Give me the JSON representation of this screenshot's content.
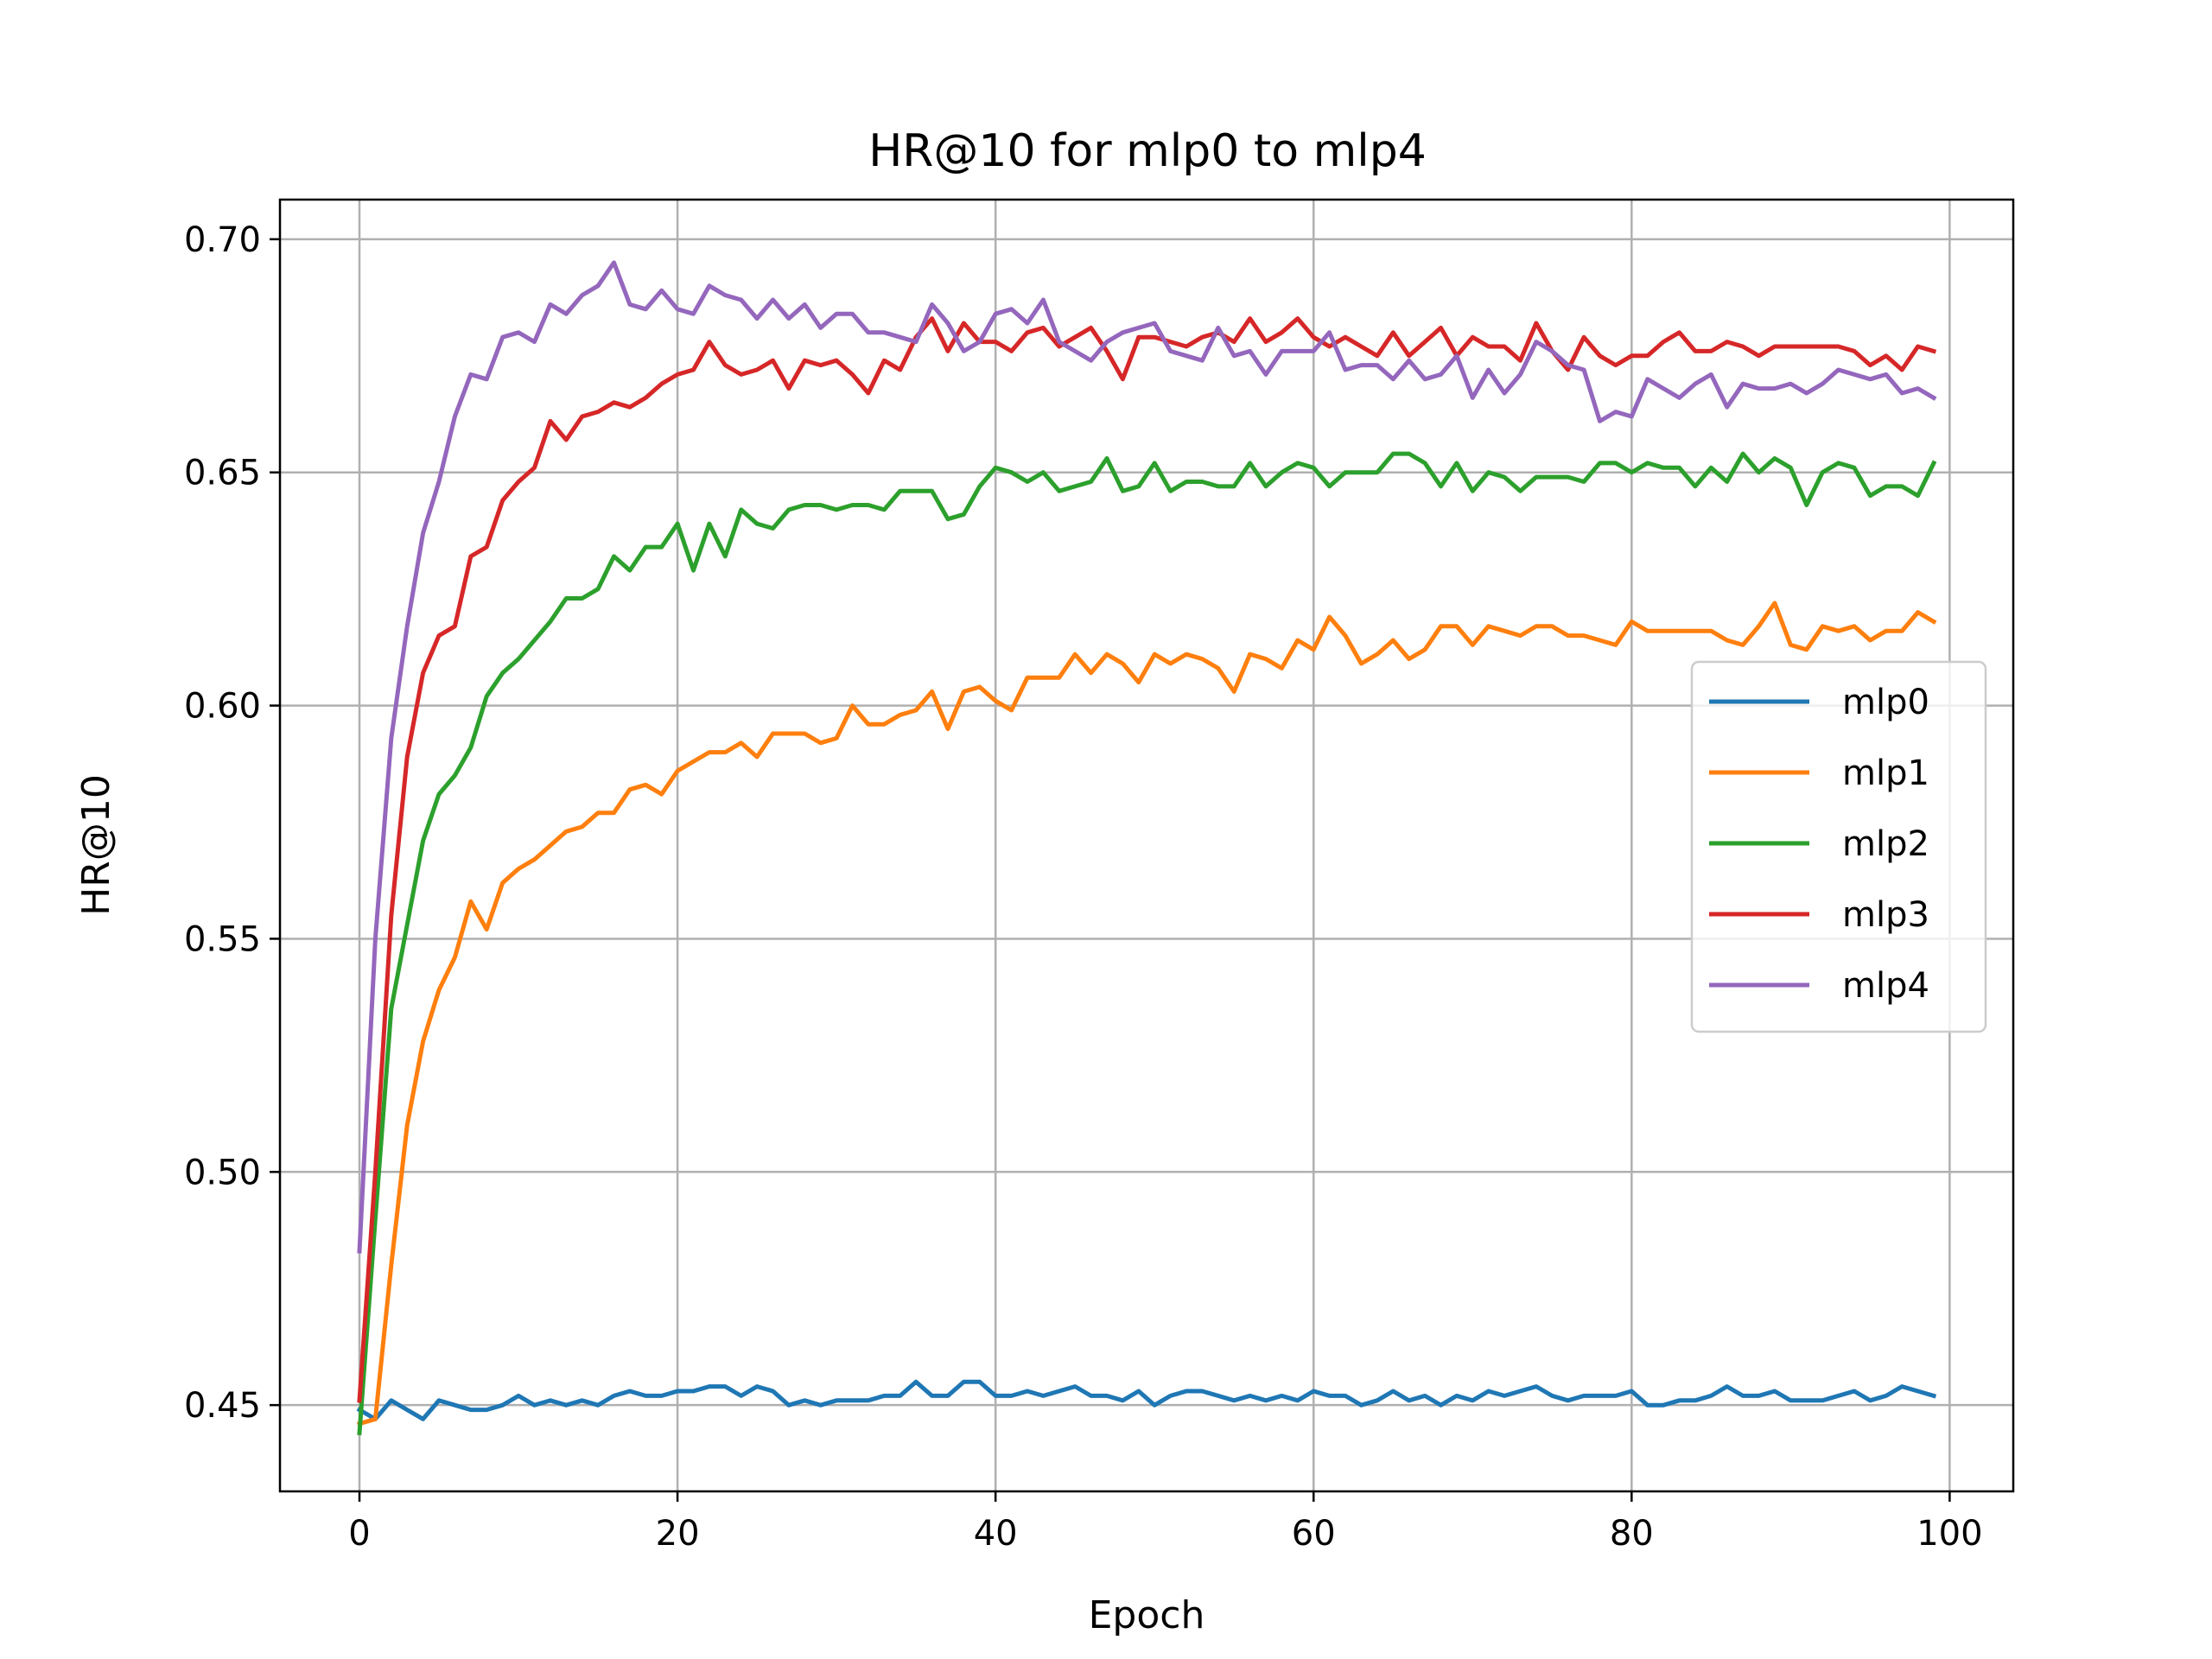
{
  "chart_data": {
    "type": "line",
    "title": "HR@10 for mlp0 to mlp4",
    "xlabel": "Epoch",
    "ylabel": "HR@10",
    "xlim": [
      -5,
      104
    ],
    "ylim": [
      0.4315,
      0.7085
    ],
    "xticks": [
      0,
      20,
      40,
      60,
      80,
      100
    ],
    "yticks": [
      0.45,
      0.5,
      0.55,
      0.6,
      0.65,
      0.7
    ],
    "xtick_labels": [
      "0",
      "20",
      "40",
      "60",
      "80",
      "100"
    ],
    "ytick_labels": [
      "0.45",
      "0.50",
      "0.55",
      "0.60",
      "0.65",
      "0.70"
    ],
    "grid": true,
    "legend_position": "center-right",
    "x_epochs": "0-99",
    "series": [
      {
        "name": "mlp0",
        "color": "#1f77b4",
        "values": [
          0.449,
          0.447,
          0.451,
          0.449,
          0.447,
          0.451,
          0.45,
          0.449,
          0.449,
          0.45,
          0.452,
          0.45,
          0.451,
          0.45,
          0.451,
          0.45,
          0.452,
          0.453,
          0.452,
          0.452,
          0.453,
          0.453,
          0.454,
          0.454,
          0.452,
          0.454,
          0.453,
          0.45,
          0.451,
          0.45,
          0.451,
          0.451,
          0.451,
          0.452,
          0.452,
          0.455,
          0.452,
          0.452,
          0.455,
          0.455,
          0.452,
          0.452,
          0.453,
          0.452,
          0.453,
          0.454,
          0.452,
          0.452,
          0.451,
          0.453,
          0.45,
          0.452,
          0.453,
          0.453,
          0.452,
          0.451,
          0.452,
          0.451,
          0.452,
          0.451,
          0.453,
          0.452,
          0.452,
          0.45,
          0.451,
          0.453,
          0.451,
          0.452,
          0.45,
          0.452,
          0.451,
          0.453,
          0.452,
          0.453,
          0.454,
          0.452,
          0.451,
          0.452,
          0.452,
          0.452,
          0.453,
          0.45,
          0.45,
          0.451,
          0.451,
          0.452,
          0.454,
          0.452,
          0.452,
          0.453,
          0.451,
          0.451,
          0.451,
          0.452,
          0.453,
          0.451,
          0.452,
          0.454,
          0.453,
          0.452
        ]
      },
      {
        "name": "mlp1",
        "color": "#ff7f0e",
        "values": [
          0.446,
          0.447,
          0.48,
          0.51,
          0.528,
          0.539,
          0.546,
          0.558,
          0.552,
          0.562,
          0.565,
          0.567,
          0.57,
          0.573,
          0.574,
          0.577,
          0.577,
          0.582,
          0.583,
          0.581,
          0.586,
          0.588,
          0.59,
          0.59,
          0.592,
          0.589,
          0.594,
          0.594,
          0.594,
          0.592,
          0.593,
          0.6,
          0.596,
          0.596,
          0.598,
          0.599,
          0.603,
          0.595,
          0.603,
          0.604,
          0.601,
          0.599,
          0.606,
          0.606,
          0.606,
          0.611,
          0.607,
          0.611,
          0.609,
          0.605,
          0.611,
          0.609,
          0.611,
          0.61,
          0.608,
          0.603,
          0.611,
          0.61,
          0.608,
          0.614,
          0.612,
          0.619,
          0.615,
          0.609,
          0.611,
          0.614,
          0.61,
          0.612,
          0.617,
          0.617,
          0.613,
          0.617,
          0.616,
          0.615,
          0.617,
          0.617,
          0.615,
          0.615,
          0.614,
          0.613,
          0.618,
          0.616,
          0.616,
          0.616,
          0.616,
          0.616,
          0.614,
          0.613,
          0.617,
          0.622,
          0.613,
          0.612,
          0.617,
          0.616,
          0.617,
          0.614,
          0.616,
          0.616,
          0.62,
          0.618
        ]
      },
      {
        "name": "mlp2",
        "color": "#2ca02c",
        "values": [
          0.444,
          0.49,
          0.535,
          0.553,
          0.571,
          0.581,
          0.585,
          0.591,
          0.602,
          0.607,
          0.61,
          0.614,
          0.618,
          0.623,
          0.623,
          0.625,
          0.632,
          0.629,
          0.634,
          0.634,
          0.639,
          0.629,
          0.639,
          0.632,
          0.642,
          0.639,
          0.638,
          0.642,
          0.643,
          0.643,
          0.642,
          0.643,
          0.643,
          0.642,
          0.646,
          0.646,
          0.646,
          0.64,
          0.641,
          0.647,
          0.651,
          0.65,
          0.648,
          0.65,
          0.646,
          0.647,
          0.648,
          0.653,
          0.646,
          0.647,
          0.652,
          0.646,
          0.648,
          0.648,
          0.647,
          0.647,
          0.652,
          0.647,
          0.65,
          0.652,
          0.651,
          0.647,
          0.65,
          0.65,
          0.65,
          0.654,
          0.654,
          0.652,
          0.647,
          0.652,
          0.646,
          0.65,
          0.649,
          0.646,
          0.649,
          0.649,
          0.649,
          0.648,
          0.652,
          0.652,
          0.65,
          0.652,
          0.651,
          0.651,
          0.647,
          0.651,
          0.648,
          0.654,
          0.65,
          0.653,
          0.651,
          0.643,
          0.65,
          0.652,
          0.651,
          0.645,
          0.647,
          0.647,
          0.645,
          0.652
        ]
      },
      {
        "name": "mlp3",
        "color": "#d62728",
        "values": [
          0.451,
          0.5,
          0.555,
          0.589,
          0.607,
          0.615,
          0.617,
          0.632,
          0.634,
          0.644,
          0.648,
          0.651,
          0.661,
          0.657,
          0.662,
          0.663,
          0.665,
          0.664,
          0.666,
          0.669,
          0.671,
          0.672,
          0.678,
          0.673,
          0.671,
          0.672,
          0.674,
          0.668,
          0.674,
          0.673,
          0.674,
          0.671,
          0.667,
          0.674,
          0.672,
          0.679,
          0.683,
          0.676,
          0.682,
          0.678,
          0.678,
          0.676,
          0.68,
          0.681,
          0.677,
          0.679,
          0.681,
          0.676,
          0.67,
          0.679,
          0.679,
          0.678,
          0.677,
          0.679,
          0.68,
          0.678,
          0.683,
          0.678,
          0.68,
          0.683,
          0.679,
          0.677,
          0.679,
          0.677,
          0.675,
          0.68,
          0.675,
          0.678,
          0.681,
          0.675,
          0.679,
          0.677,
          0.677,
          0.674,
          0.682,
          0.676,
          0.672,
          0.679,
          0.675,
          0.673,
          0.675,
          0.675,
          0.678,
          0.68,
          0.676,
          0.676,
          0.678,
          0.677,
          0.675,
          0.677,
          0.677,
          0.677,
          0.677,
          0.677,
          0.676,
          0.673,
          0.675,
          0.672,
          0.677,
          0.676
        ]
      },
      {
        "name": "mlp4",
        "color": "#9467bd",
        "values": [
          0.483,
          0.55,
          0.593,
          0.617,
          0.637,
          0.648,
          0.662,
          0.671,
          0.67,
          0.679,
          0.68,
          0.678,
          0.686,
          0.684,
          0.688,
          0.69,
          0.695,
          0.686,
          0.685,
          0.689,
          0.685,
          0.684,
          0.69,
          0.688,
          0.687,
          0.683,
          0.687,
          0.683,
          0.686,
          0.681,
          0.684,
          0.684,
          0.68,
          0.68,
          0.679,
          0.678,
          0.686,
          0.682,
          0.676,
          0.678,
          0.684,
          0.685,
          0.682,
          0.687,
          0.678,
          0.676,
          0.674,
          0.678,
          0.68,
          0.681,
          0.682,
          0.676,
          0.675,
          0.674,
          0.681,
          0.675,
          0.676,
          0.671,
          0.676,
          0.676,
          0.676,
          0.68,
          0.672,
          0.673,
          0.673,
          0.67,
          0.674,
          0.67,
          0.671,
          0.675,
          0.666,
          0.672,
          0.667,
          0.671,
          0.678,
          0.676,
          0.673,
          0.672,
          0.661,
          0.663,
          0.662,
          0.67,
          0.668,
          0.666,
          0.669,
          0.671,
          0.664,
          0.669,
          0.668,
          0.668,
          0.669,
          0.667,
          0.669,
          0.672,
          0.671,
          0.67,
          0.671,
          0.667,
          0.668,
          0.666
        ]
      }
    ]
  }
}
